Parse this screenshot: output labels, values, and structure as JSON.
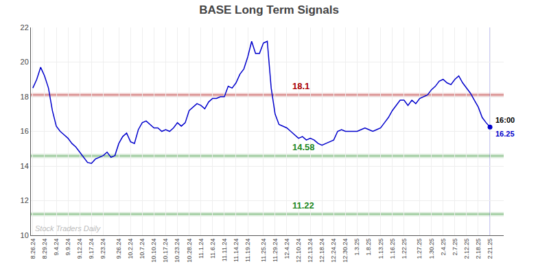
{
  "chart_data": {
    "type": "line",
    "title": "BASE Long Term Signals",
    "ylim": [
      10,
      22
    ],
    "yticks": [
      10,
      12,
      14,
      16,
      18,
      20,
      22
    ],
    "grid": true,
    "color": "#0000cc",
    "categories": [
      "8.26.24",
      null,
      null,
      "8.29.24",
      null,
      null,
      "9.4.24",
      null,
      null,
      "9.9.24",
      null,
      null,
      "9.12.24",
      null,
      null,
      "9.17.24",
      null,
      null,
      "9.23.24",
      null,
      null,
      null,
      "9.26.24",
      null,
      null,
      "10.2.24",
      null,
      null,
      "10.7.24",
      null,
      null,
      "10.10.24",
      null,
      null,
      "10.17.24",
      null,
      null,
      "10.23.24",
      null,
      null,
      "10.28.24",
      null,
      null,
      "11.1.24",
      null,
      null,
      "11.6.24",
      null,
      null,
      "11.11.24",
      null,
      null,
      "11.14.24",
      null,
      null,
      "11.19.24",
      null,
      null,
      null,
      "11.25.24",
      null,
      null,
      "11.29.24",
      null,
      null,
      "12.4.24",
      null,
      null,
      "12.10.24",
      null,
      null,
      "12.13.24",
      null,
      null,
      "12.18.24",
      null,
      null,
      "12.24.24",
      null,
      null,
      "12.30.24",
      null,
      null,
      "1.3.25",
      null,
      null,
      "1.8.25",
      null,
      null,
      "1.13.25",
      null,
      null,
      "1.16.25",
      null,
      null,
      "1.22.25",
      null,
      null,
      null,
      "1.27.25",
      null,
      null,
      "1.30.25",
      null,
      null,
      "2.4.25",
      null,
      null,
      "2.7.25",
      null,
      null,
      "2.12.25",
      null,
      null,
      "2.18.25",
      null,
      null,
      "2.21.25"
    ],
    "values": [
      18.5,
      19.0,
      19.7,
      19.2,
      18.5,
      17.2,
      16.3,
      16.0,
      15.8,
      15.6,
      15.3,
      15.1,
      14.8,
      14.5,
      14.2,
      14.15,
      14.4,
      14.5,
      14.6,
      14.8,
      14.5,
      14.6,
      15.3,
      15.7,
      15.9,
      15.4,
      15.3,
      16.1,
      16.5,
      16.6,
      16.4,
      16.2,
      16.2,
      16.0,
      16.1,
      16.0,
      16.2,
      16.5,
      16.3,
      16.5,
      17.2,
      17.4,
      17.6,
      17.5,
      17.3,
      17.7,
      17.9,
      17.9,
      18.0,
      18.0,
      18.6,
      18.5,
      18.8,
      19.3,
      19.6,
      20.3,
      21.2,
      20.5,
      20.5,
      21.1,
      21.2,
      18.5,
      17.0,
      16.4,
      16.3,
      16.2,
      16.0,
      15.8,
      15.6,
      15.7,
      15.5,
      15.6,
      15.5,
      15.3,
      15.2,
      15.3,
      15.4,
      15.5,
      16.0,
      16.1,
      16.0,
      16.0,
      16.0,
      16.0,
      16.1,
      16.2,
      16.1,
      16.0,
      16.1,
      16.2,
      16.5,
      16.8,
      17.2,
      17.5,
      17.8,
      17.8,
      17.5,
      17.8,
      17.6,
      17.9,
      18.0,
      18.1,
      18.4,
      18.6,
      18.9,
      19.0,
      18.8,
      18.7,
      19.0,
      19.2,
      18.8,
      18.5,
      18.2,
      17.8,
      17.4,
      16.8,
      16.5,
      16.25
    ],
    "hlines": [
      {
        "y": 18.1,
        "label": "18.1",
        "color": "#aa0000"
      },
      {
        "y": 14.58,
        "label": "14.58",
        "color": "#228822"
      },
      {
        "y": 11.22,
        "label": "11.22",
        "color": "#228822"
      }
    ],
    "last_point": {
      "time_label": "16:00",
      "value": 16.25
    },
    "watermark": "Stock Traders Daily"
  }
}
